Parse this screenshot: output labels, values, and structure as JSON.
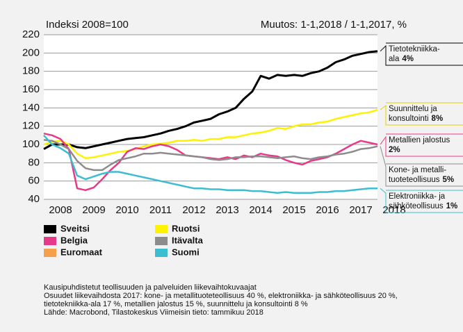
{
  "chart_data": {
    "type": "line",
    "y_label": "Indeksi 2008=100",
    "subtitle": "Muutos: 1-1,2018 / 1-1,2017, %",
    "xlim": [
      2008,
      2018
    ],
    "xticks": [
      {
        "value": 2008.5,
        "label": "2008"
      },
      {
        "value": 2009.5,
        "label": "2009"
      },
      {
        "value": 2010.5,
        "label": "2010"
      },
      {
        "value": 2011.5,
        "label": "2011"
      },
      {
        "value": 2012.5,
        "label": "2012"
      },
      {
        "value": 2013.5,
        "label": "2013"
      },
      {
        "value": 2014.5,
        "label": "2014"
      },
      {
        "value": 2015.5,
        "label": "2015"
      },
      {
        "value": 2016.5,
        "label": "2016"
      },
      {
        "value": 2017.5,
        "label": "2017"
      },
      {
        "value": 2018.5,
        "label": "2018"
      }
    ],
    "ylim": [
      40,
      220
    ],
    "yticks": [
      40,
      60,
      80,
      100,
      120,
      140,
      160,
      180,
      200,
      220
    ],
    "grid": true,
    "x": [
      2008,
      2008.25,
      2008.5,
      2008.75,
      2009,
      2009.25,
      2009.5,
      2009.75,
      2010,
      2010.25,
      2010.5,
      2010.75,
      2011,
      2011.25,
      2011.5,
      2011.75,
      2012,
      2012.25,
      2012.5,
      2012.75,
      2013,
      2013.25,
      2013.5,
      2013.75,
      2014,
      2014.25,
      2014.5,
      2014.75,
      2015,
      2015.25,
      2015.5,
      2015.75,
      2016,
      2016.25,
      2016.5,
      2016.75,
      2017,
      2017.25,
      2017.5,
      2017.75,
      2018
    ],
    "series": [
      {
        "color": "#000000",
        "annotation": {
          "lines": [
            "Tietotekniikka-",
            "ala"
          ],
          "change": "4%"
        },
        "values": [
          95,
          100,
          100,
          100,
          97,
          96,
          98,
          100,
          102,
          104,
          106,
          107,
          108,
          110,
          112,
          115,
          117,
          120,
          124,
          126,
          128,
          133,
          136,
          140,
          150,
          158,
          175,
          172,
          176,
          175,
          176,
          175,
          178,
          180,
          184,
          190,
          193,
          197,
          199,
          201,
          202
        ]
      },
      {
        "color": "#fff200",
        "annotation": {
          "lines": [
            "Suunnittelu ja",
            "konsultointi"
          ],
          "change": "8%"
        },
        "values": [
          100,
          103,
          104,
          100,
          90,
          85,
          86,
          88,
          90,
          92,
          93,
          95,
          98,
          100,
          101,
          102,
          104,
          104,
          105,
          104,
          106,
          106,
          108,
          108,
          110,
          112,
          113,
          115,
          118,
          117,
          120,
          122,
          122,
          124,
          125,
          128,
          130,
          132,
          134,
          135,
          138
        ]
      },
      {
        "color": "#e6398a",
        "annotation": {
          "lines": [
            "Metallien jalostus",
            ""
          ],
          "change": "2%"
        },
        "values": [
          112,
          110,
          106,
          95,
          52,
          50,
          53,
          62,
          72,
          80,
          92,
          96,
          95,
          98,
          100,
          98,
          94,
          88,
          87,
          86,
          85,
          84,
          86,
          84,
          88,
          86,
          90,
          88,
          87,
          83,
          80,
          78,
          82,
          84,
          86,
          90,
          95,
          100,
          104,
          102,
          100
        ]
      },
      {
        "color": "#8c8c8c",
        "annotation": {
          "lines": [
            "Kone- ja metalli-",
            "tuoteteollisuus"
          ],
          "change": "5%"
        },
        "values": [
          105,
          104,
          100,
          95,
          82,
          74,
          72,
          72,
          78,
          83,
          85,
          87,
          90,
          90,
          91,
          90,
          89,
          88,
          87,
          86,
          84,
          83,
          84,
          86,
          86,
          87,
          87,
          86,
          85,
          86,
          87,
          85,
          84,
          86,
          87,
          89,
          90,
          92,
          95,
          96,
          98
        ]
      },
      {
        "color": "#3dbdd0",
        "annotation": {
          "lines": [
            "Elektroniikka- ja",
            "sähköteollisuus"
          ],
          "change": "1%"
        },
        "values": [
          110,
          100,
          96,
          90,
          66,
          62,
          65,
          68,
          70,
          70,
          68,
          66,
          64,
          62,
          60,
          58,
          56,
          54,
          52,
          52,
          51,
          51,
          50,
          50,
          50,
          49,
          49,
          48,
          47,
          48,
          47,
          47,
          47,
          48,
          48,
          49,
          49,
          50,
          51,
          52,
          52
        ]
      }
    ],
    "legend": [
      {
        "name": "Sveitsi",
        "color": "#000000"
      },
      {
        "name": "Belgia",
        "color": "#e6398a"
      },
      {
        "name": "Euromaat",
        "color": "#f5a04a"
      },
      {
        "name": "Ruotsi",
        "color": "#fff200"
      },
      {
        "name": "Itävalta",
        "color": "#8c8c8c"
      },
      {
        "name": "Suomi",
        "color": "#3dbdd0"
      }
    ],
    "notes": [
      "Kausipuhdistetut teollisuuden ja palveluiden liikevaihtokuvaajat",
      "Osuudet liikevaihdosta 2017: kone- ja metallituoteteollisuus 40 %, elektroniikka- ja sähköteollisuus 20 %,",
      "tietotekniikka-ala 17 %, metallien jalostus 15 %, suunnittelu ja konsultointi 8 %",
      "Lähde: Macrobond, Tilastokeskus       Viimeisin tieto: tammikuu 2018"
    ]
  }
}
